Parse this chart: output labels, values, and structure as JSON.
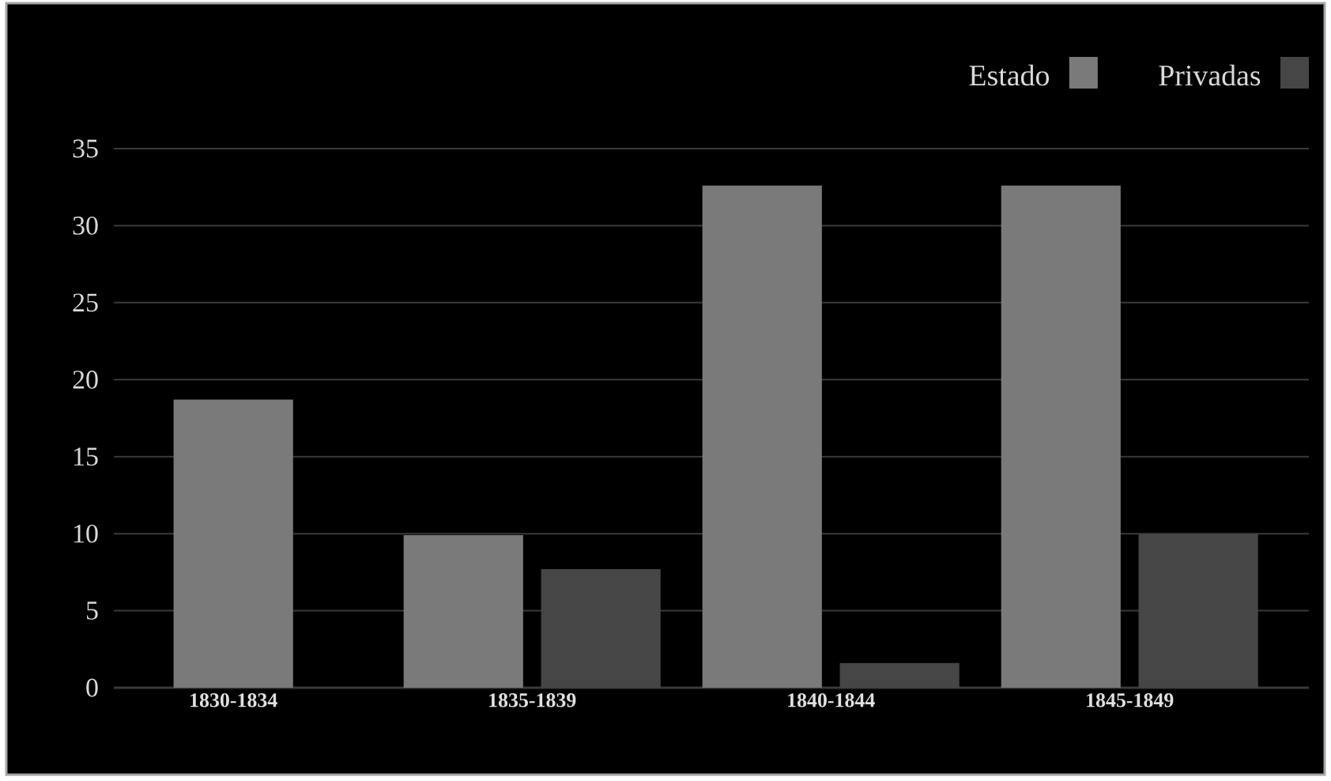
{
  "chart_data": {
    "type": "bar",
    "categories": [
      "1830-1834",
      "1835-1839",
      "1840-1844",
      "1845-1849"
    ],
    "series": [
      {
        "name": "Estado",
        "color": "#7a7a7a",
        "values": [
          18.7,
          9.9,
          32.6,
          32.6
        ]
      },
      {
        "name": "Privadas",
        "color": "#464646",
        "values": [
          null,
          7.7,
          1.6,
          10.0
        ]
      }
    ],
    "ylim": [
      0,
      35
    ],
    "yticks": [
      0,
      5,
      10,
      15,
      20,
      25,
      30,
      35
    ],
    "grid": "y",
    "legend": "top right"
  }
}
